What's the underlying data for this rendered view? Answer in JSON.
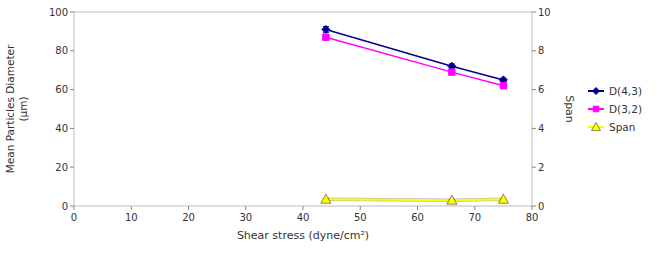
{
  "chart_data": {
    "type": "line",
    "x": [
      44,
      66,
      75
    ],
    "xlabel": "Shear stress (dyne/cm²)",
    "ylabel": "Mean Particles Diameter\n(μm)",
    "y2label": "Span",
    "xlim": [
      0,
      80
    ],
    "xticks": [
      0,
      10,
      20,
      30,
      40,
      50,
      60,
      70,
      80
    ],
    "ylim": [
      0,
      100
    ],
    "yticks": [
      0,
      20,
      40,
      60,
      80,
      100
    ],
    "y2lim": [
      0,
      10
    ],
    "y2ticks": [
      0,
      2,
      4,
      6,
      8,
      10
    ],
    "legend": "right",
    "series": [
      {
        "name": "D(4,3)",
        "color": "#00008B",
        "marker": "diamond",
        "values": [
          91,
          72,
          65
        ],
        "errors": [
          1.5,
          1.2,
          0.8
        ]
      },
      {
        "name": "D(3,2)",
        "color": "#FF00FF",
        "marker": "square",
        "values": [
          87,
          69,
          62
        ],
        "errors": [
          1.0,
          1.0,
          0.7
        ]
      },
      {
        "name": "Span",
        "color": "#FFFF00",
        "marker": "triangle",
        "axis": "y2",
        "values": [
          0.35,
          0.3,
          0.35
        ],
        "errors": [
          0.03,
          0.03,
          0.03
        ]
      }
    ]
  }
}
